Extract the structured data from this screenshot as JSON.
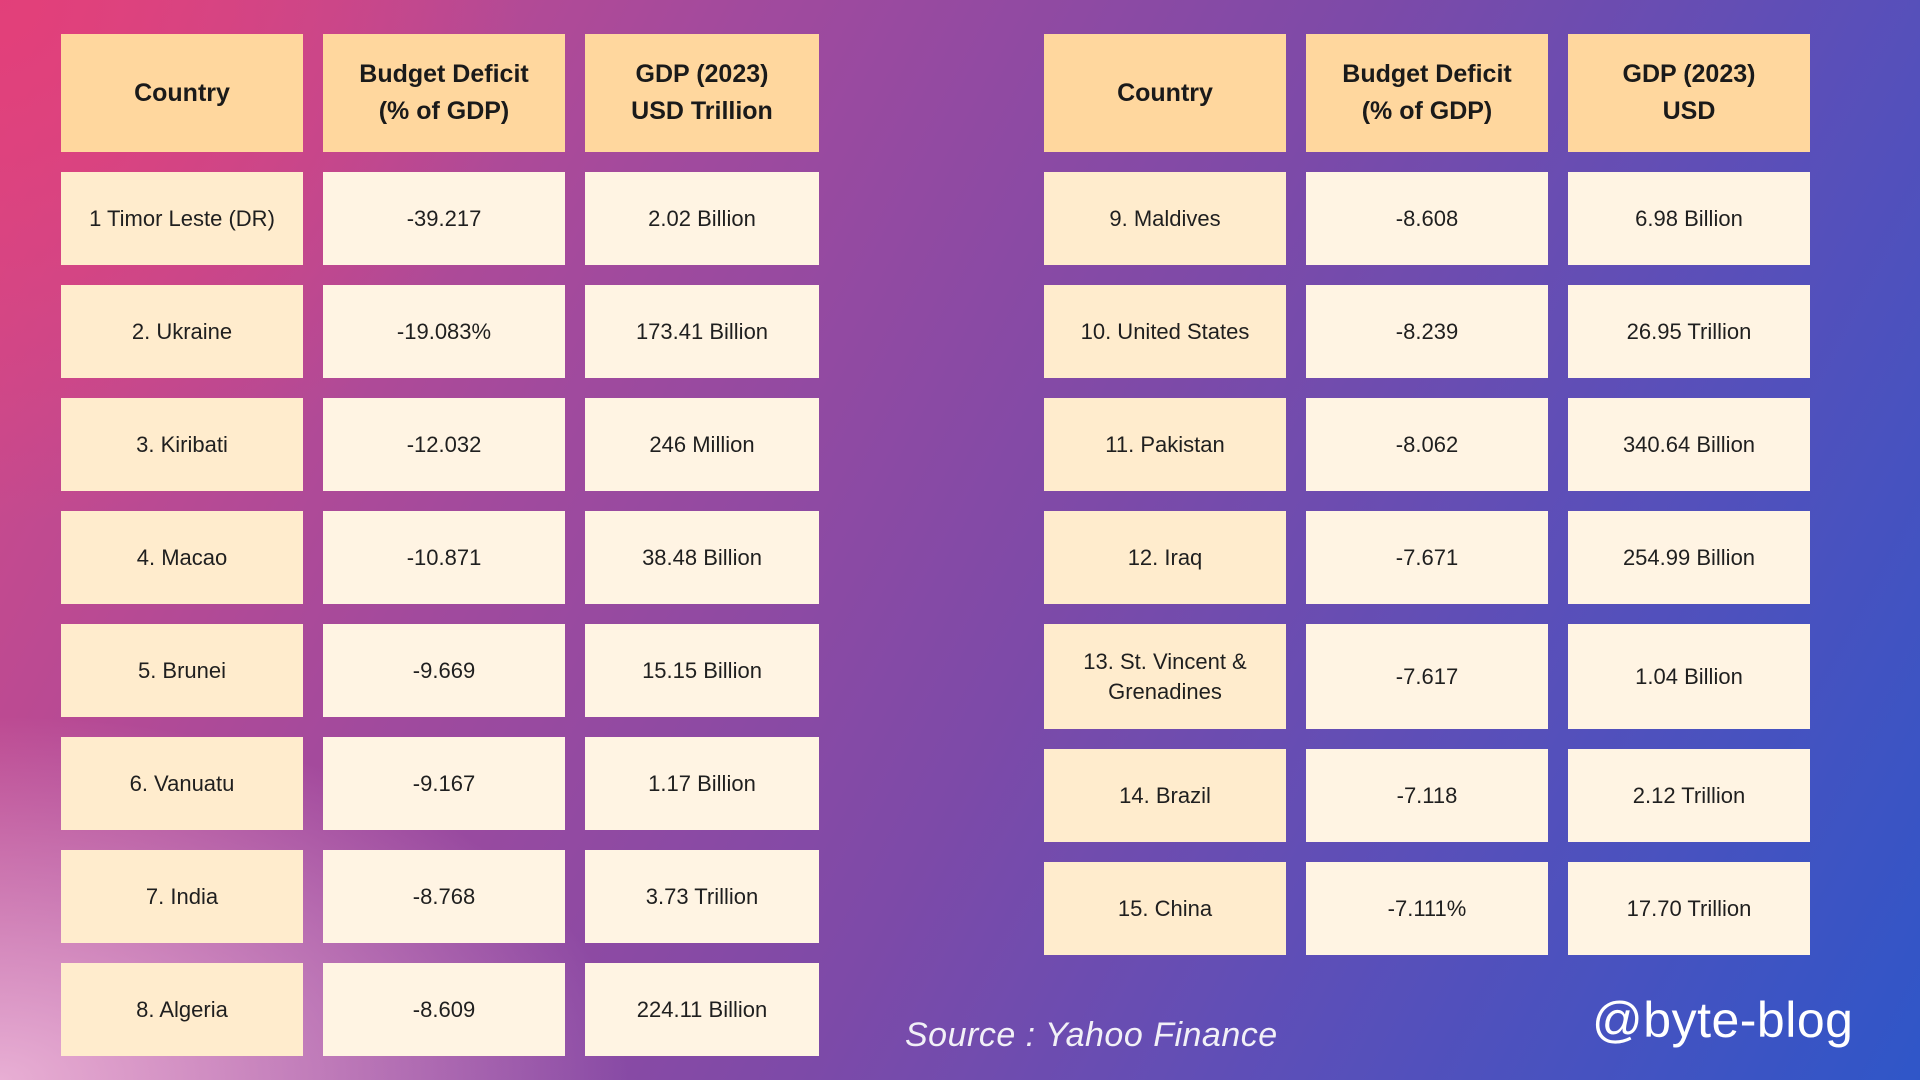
{
  "chart_data": [
    {
      "type": "table",
      "columns": [
        "Country",
        "Budget Deficit\n(% of GDP)",
        "GDP (2023)\nUSD Trillion"
      ],
      "rows": [
        [
          "1 Timor Leste (DR)",
          "-39.217",
          "2.02 Billion"
        ],
        [
          "2. Ukraine",
          "-19.083%",
          "173.41 Billion"
        ],
        [
          "3. Kiribati",
          "-12.032",
          "246 Million"
        ],
        [
          "4. Macao",
          "-10.871",
          "38.48 Billion"
        ],
        [
          "5. Brunei",
          "-9.669",
          "15.15 Billion"
        ],
        [
          "6. Vanuatu",
          "-9.167",
          "1.17 Billion"
        ],
        [
          "7. India",
          "-8.768",
          "3.73 Trillion"
        ],
        [
          "8. Algeria",
          "-8.609",
          "224.11 Billion"
        ]
      ]
    },
    {
      "type": "table",
      "columns": [
        "Country",
        "Budget Deficit\n(% of GDP)",
        "GDP (2023)\nUSD"
      ],
      "rows": [
        [
          "9. Maldives",
          "-8.608",
          "6.98 Billion"
        ],
        [
          "10. United States",
          "-8.239",
          "26.95 Trillion"
        ],
        [
          "11. Pakistan",
          "-8.062",
          "340.64 Billion"
        ],
        [
          "12. Iraq",
          "-7.671",
          "254.99 Billion"
        ],
        [
          "13. St. Vincent &\nGrenadines",
          "-7.617",
          "1.04 Billion"
        ],
        [
          "14. Brazil",
          "-7.118",
          "2.12 Trillion"
        ],
        [
          "15. China",
          "-7.111%",
          "17.70 Trillion"
        ]
      ]
    }
  ],
  "source_text": "Source  : Yahoo Finance",
  "handle": "@byte-blog",
  "colors": {
    "header_cell": "#ffd79e",
    "country_cell": "#ffeccd",
    "value_cell": "#fff4e3",
    "gradient_start": "#e43e78",
    "gradient_end": "#2f56c8"
  }
}
